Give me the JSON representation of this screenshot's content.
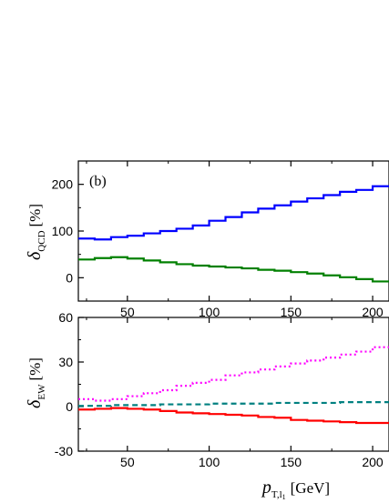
{
  "chart_data": [
    {
      "type": "line",
      "step": true,
      "panel_label": "(b)",
      "ylabel_symbol": "δ",
      "ylabel_subscript": "QCD",
      "ylabel_unit": "[%]",
      "xlim": [
        20,
        210
      ],
      "ylim": [
        -50,
        250
      ],
      "x_ticks": [
        50,
        100,
        150,
        200
      ],
      "x_tick_labels": [
        "50",
        "100",
        "150",
        "200"
      ],
      "y_ticks": [
        0,
        100,
        200
      ],
      "y_tick_labels": [
        "0",
        "100",
        "200"
      ],
      "bin_edges": [
        20,
        30,
        40,
        50,
        60,
        70,
        80,
        90,
        100,
        110,
        120,
        130,
        140,
        150,
        160,
        170,
        180,
        190,
        200,
        210
      ],
      "series": [
        {
          "color": "#0000ff",
          "style": "solid",
          "values": [
            84,
            82,
            87,
            90,
            95,
            100,
            105,
            112,
            122,
            130,
            140,
            148,
            155,
            163,
            170,
            177,
            184,
            188,
            196
          ]
        },
        {
          "color": "#008000",
          "style": "solid",
          "values": [
            39,
            42,
            44,
            41,
            37,
            33,
            29,
            26,
            24,
            22,
            20,
            17,
            15,
            12,
            9,
            5,
            1,
            -3,
            -8
          ]
        }
      ]
    },
    {
      "type": "line",
      "step": true,
      "ylabel_symbol": "δ",
      "ylabel_subscript": "EW",
      "ylabel_unit": "[%]",
      "xlabel_symbol": "p",
      "xlabel_subscript": "T,l",
      "xlabel_subsubscript": "1",
      "xlabel_unit": "[GeV]",
      "xlim": [
        20,
        210
      ],
      "ylim": [
        -30,
        60
      ],
      "x_ticks": [
        50,
        100,
        150,
        200
      ],
      "x_tick_labels": [
        "50",
        "100",
        "150",
        "200"
      ],
      "y_ticks": [
        -30,
        0,
        30,
        60
      ],
      "y_tick_labels": [
        "-30",
        "0",
        "30",
        "60"
      ],
      "bin_edges": [
        20,
        30,
        40,
        50,
        60,
        70,
        80,
        90,
        100,
        110,
        120,
        130,
        140,
        150,
        160,
        170,
        180,
        190,
        200,
        210
      ],
      "series": [
        {
          "color": "#ff00ff",
          "style": "dotted",
          "values": [
            5,
            4,
            5,
            7,
            9,
            11,
            14,
            16,
            18,
            21,
            23,
            25,
            27,
            29,
            31,
            33,
            35,
            37,
            40
          ]
        },
        {
          "color": "#008080",
          "style": "dashed",
          "values": [
            0.5,
            0.5,
            1,
            1,
            1,
            1.5,
            1.5,
            1.5,
            2,
            2,
            2,
            2,
            2.5,
            2.5,
            2.5,
            2.5,
            3,
            3,
            3
          ]
        },
        {
          "color": "#ff0000",
          "style": "solid",
          "values": [
            -2,
            -1.5,
            -1,
            -1.5,
            -2,
            -3,
            -4,
            -4.5,
            -5,
            -5.5,
            -6,
            -7,
            -7.5,
            -9,
            -9.5,
            -10,
            -10.5,
            -11,
            -11
          ]
        }
      ]
    }
  ]
}
